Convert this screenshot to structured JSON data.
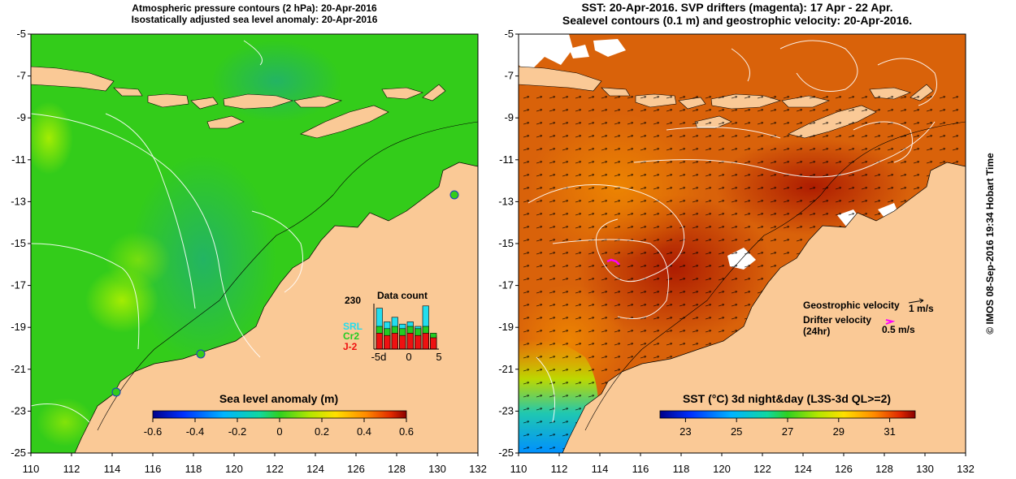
{
  "left_panel": {
    "title_line1": "Atmospheric pressure contours (2 hPa): 20-Apr-2016",
    "title_line2": "Isostatically adjusted sea level anomaly: 20-Apr-2016",
    "colorbar_title": "Sea level anomaly (m)",
    "colorbar_ticks": [
      "-0.6",
      "-0.4",
      "-0.2",
      "0",
      "0.2",
      "0.4",
      "0.6"
    ],
    "colorbar_range": [
      -0.6,
      0.6
    ],
    "colors": {
      "ocean_base": "#33cc1a",
      "land": "#fac996"
    }
  },
  "right_panel": {
    "title_line1": "SST: 20-Apr-2016. SVP drifters (magenta): 17 Apr - 22 Apr.",
    "title_line2": "Sealevel contours (0.1 m) and geostrophic velocity: 20-Apr-2016.",
    "colorbar_title": "SST (°C) 3d night&day (L3S-3d QL>=2)",
    "colorbar_ticks": [
      "23",
      "25",
      "27",
      "29",
      "31"
    ],
    "colorbar_range": [
      22,
      32
    ],
    "colors": {
      "ocean_base": "#d9620a",
      "land": "#fac996",
      "drifter": "#ff00ff"
    }
  },
  "axes": {
    "lat_ticks": [
      "-5",
      "-7",
      "-9",
      "-11",
      "-13",
      "-15",
      "-17",
      "-19",
      "-21",
      "-23",
      "-25"
    ],
    "lon_ticks": [
      "110",
      "112",
      "114",
      "116",
      "118",
      "120",
      "122",
      "124",
      "126",
      "128",
      "130",
      "132"
    ]
  },
  "data_count": {
    "title": "Data count",
    "max_label": "230",
    "x_ticks": [
      "-5d",
      "0",
      "5"
    ],
    "series": [
      {
        "name": "SRL",
        "color": "#22ddee",
        "values": [
          0.9,
          0.6,
          0.7,
          0.55,
          0.6,
          0.5,
          0.95,
          0.3
        ]
      },
      {
        "name": "Cr2",
        "color": "#22cc22",
        "values": [
          0.5,
          0.45,
          0.5,
          0.45,
          0.5,
          0.45,
          0.5,
          0.35
        ]
      },
      {
        "name": "J-2",
        "color": "#ee1111",
        "values": [
          0.35,
          0.3,
          0.35,
          0.3,
          0.35,
          0.3,
          0.35,
          0.25
        ]
      }
    ]
  },
  "velocity_legend": {
    "geostrophic_label": "Geostrophic velocity",
    "geostrophic_value": "1 m/s",
    "drifter_label_line1": "Drifter velocity",
    "drifter_label_line2": "(24hr)",
    "drifter_value": "0.5 m/s"
  },
  "credit": "© IMOS 08-Sep-2016 19:34 Hobart Time"
}
